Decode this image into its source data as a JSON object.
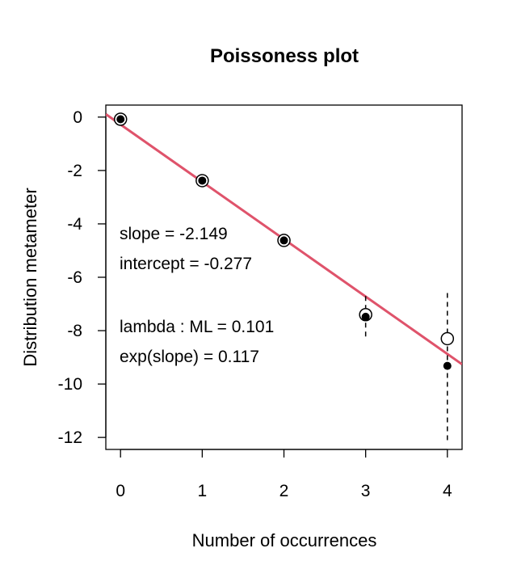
{
  "chart_data": {
    "type": "scatter",
    "title": "Poissoness plot",
    "xlabel": "Number of occurrences",
    "ylabel": "Distribution metameter",
    "xlim": [
      -0.18,
      4.18
    ],
    "ylim": [
      -12.45,
      0.45
    ],
    "x_ticks": [
      0,
      1,
      2,
      3,
      4
    ],
    "x_tick_labels": [
      "0",
      "1",
      "2",
      "3",
      "4"
    ],
    "y_ticks": [
      0,
      -2,
      -4,
      -6,
      -8,
      -10,
      -12
    ],
    "y_tick_labels": [
      "0",
      "-2",
      "-4",
      "-6",
      "-8",
      "-10",
      "-12"
    ],
    "grid": false,
    "fit_line": {
      "slope": -2.149,
      "intercept": -0.277,
      "color": "#df536b"
    },
    "points": [
      {
        "x": 0,
        "observed": -0.08,
        "centered": -0.08,
        "ci": null
      },
      {
        "x": 1,
        "observed": -2.38,
        "centered": -2.38,
        "ci": null
      },
      {
        "x": 2,
        "observed": -4.62,
        "centered": -4.62,
        "ci": null
      },
      {
        "x": 3,
        "observed": -7.4,
        "centered": -7.48,
        "ci": [
          -8.22,
          -6.7
        ]
      },
      {
        "x": 4,
        "observed": -8.3,
        "centered": -9.32,
        "ci": [
          -12.1,
          -6.55
        ]
      }
    ],
    "annotations": [
      "slope = -2.149",
      "intercept = -0.277",
      "lambda : ML = 0.101",
      "exp(slope) = 0.117"
    ]
  }
}
